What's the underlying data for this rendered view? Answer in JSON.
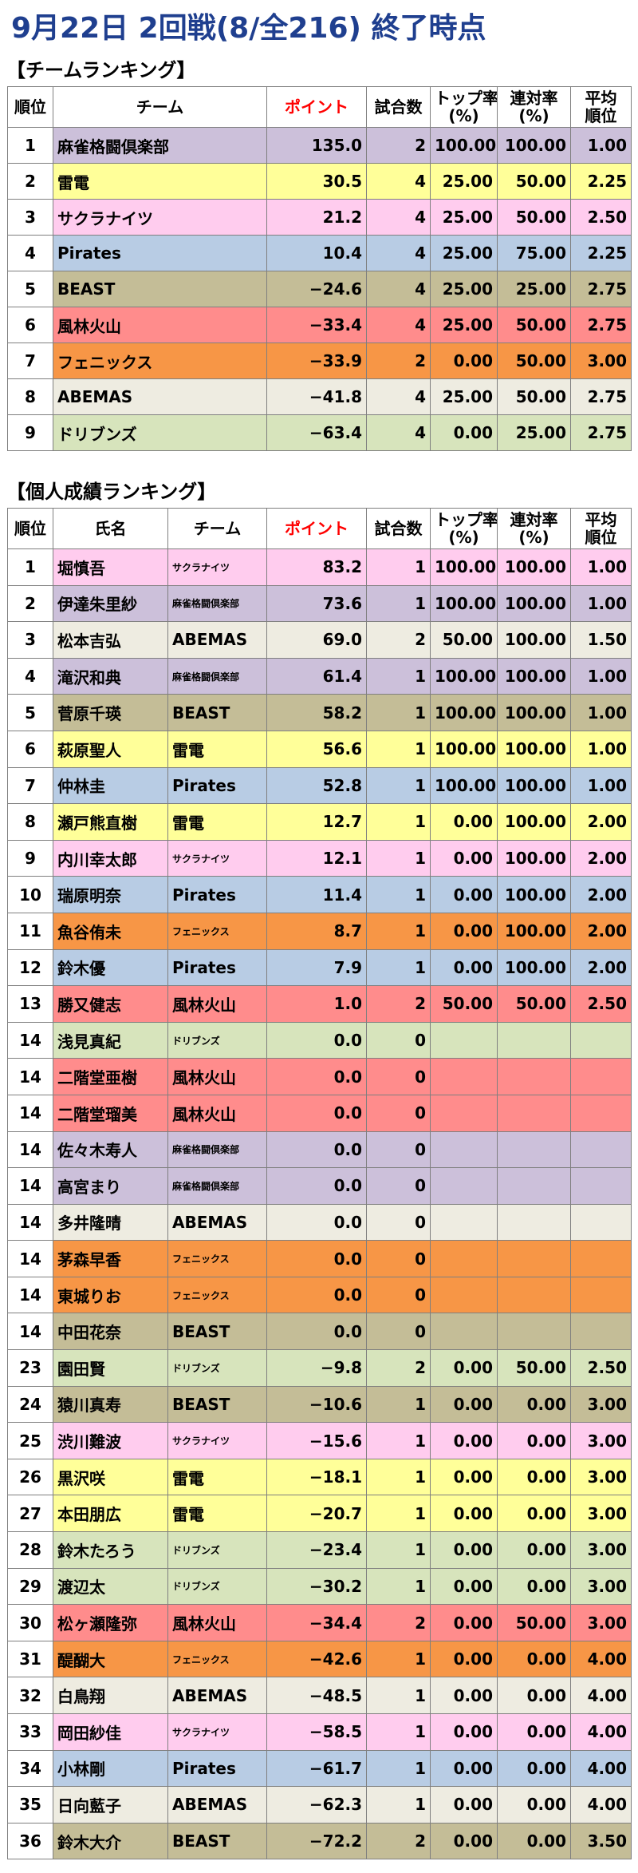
{
  "title": "9月22日 2回戦(8/全216) 終了時点",
  "team_section": "【チームランキング】",
  "indiv_section": "【個人成績ランキング】",
  "headers": {
    "rank": "順位",
    "team": "チーム",
    "name": "氏名",
    "points": "ポイント",
    "games": "試合数",
    "top_rate_1": "トップ率",
    "top_rate_2": "(%)",
    "rentai_1": "連対率",
    "rentai_2": "(%)",
    "avg_1": "平均",
    "avg_2": "順位"
  },
  "colors": {
    "麻雀格闘倶楽部": "#ccc0da",
    "雷電": "#ffff99",
    "サクラナイツ": "#ffccee",
    "Pirates": "#b8cce4",
    "BEAST": "#c4bd97",
    "風林火山": "#ff8c8c",
    "フェニックス": "#f79646",
    "ABEMAS": "#eeece1",
    "ドリブンズ": "#d7e4bc"
  },
  "teams": [
    {
      "rank": "1",
      "team": "麻雀格闘倶楽部",
      "points": "135.0",
      "games": "2",
      "top": "100.00",
      "rentai": "100.00",
      "avg": "1.00"
    },
    {
      "rank": "2",
      "team": "雷電",
      "points": "30.5",
      "games": "4",
      "top": "25.00",
      "rentai": "50.00",
      "avg": "2.25"
    },
    {
      "rank": "3",
      "team": "サクラナイツ",
      "points": "21.2",
      "games": "4",
      "top": "25.00",
      "rentai": "50.00",
      "avg": "2.50"
    },
    {
      "rank": "4",
      "team": "Pirates",
      "points": "10.4",
      "games": "4",
      "top": "25.00",
      "rentai": "75.00",
      "avg": "2.25"
    },
    {
      "rank": "5",
      "team": "BEAST",
      "points": "−24.6",
      "games": "4",
      "top": "25.00",
      "rentai": "25.00",
      "avg": "2.75"
    },
    {
      "rank": "6",
      "team": "風林火山",
      "points": "−33.4",
      "games": "4",
      "top": "25.00",
      "rentai": "50.00",
      "avg": "2.75"
    },
    {
      "rank": "7",
      "team": "フェニックス",
      "points": "−33.9",
      "games": "2",
      "top": "0.00",
      "rentai": "50.00",
      "avg": "3.00"
    },
    {
      "rank": "8",
      "team": "ABEMAS",
      "points": "−41.8",
      "games": "4",
      "top": "25.00",
      "rentai": "50.00",
      "avg": "2.75"
    },
    {
      "rank": "9",
      "team": "ドリブンズ",
      "points": "−63.4",
      "games": "4",
      "top": "0.00",
      "rentai": "25.00",
      "avg": "2.75"
    }
  ],
  "players": [
    {
      "rank": "1",
      "name": "堀慎吾",
      "team": "サクラナイツ",
      "points": "83.2",
      "games": "1",
      "top": "100.00",
      "rentai": "100.00",
      "avg": "1.00"
    },
    {
      "rank": "2",
      "name": "伊達朱里紗",
      "team": "麻雀格闘倶楽部",
      "points": "73.6",
      "games": "1",
      "top": "100.00",
      "rentai": "100.00",
      "avg": "1.00"
    },
    {
      "rank": "3",
      "name": "松本吉弘",
      "team": "ABEMAS",
      "points": "69.0",
      "games": "2",
      "top": "50.00",
      "rentai": "100.00",
      "avg": "1.50"
    },
    {
      "rank": "4",
      "name": "滝沢和典",
      "team": "麻雀格闘倶楽部",
      "points": "61.4",
      "games": "1",
      "top": "100.00",
      "rentai": "100.00",
      "avg": "1.00"
    },
    {
      "rank": "5",
      "name": "菅原千瑛",
      "team": "BEAST",
      "points": "58.2",
      "games": "1",
      "top": "100.00",
      "rentai": "100.00",
      "avg": "1.00"
    },
    {
      "rank": "6",
      "name": "萩原聖人",
      "team": "雷電",
      "points": "56.6",
      "games": "1",
      "top": "100.00",
      "rentai": "100.00",
      "avg": "1.00"
    },
    {
      "rank": "7",
      "name": "仲林圭",
      "team": "Pirates",
      "points": "52.8",
      "games": "1",
      "top": "100.00",
      "rentai": "100.00",
      "avg": "1.00"
    },
    {
      "rank": "8",
      "name": "瀬戸熊直樹",
      "team": "雷電",
      "points": "12.7",
      "games": "1",
      "top": "0.00",
      "rentai": "100.00",
      "avg": "2.00"
    },
    {
      "rank": "9",
      "name": "内川幸太郎",
      "team": "サクラナイツ",
      "points": "12.1",
      "games": "1",
      "top": "0.00",
      "rentai": "100.00",
      "avg": "2.00"
    },
    {
      "rank": "10",
      "name": "瑞原明奈",
      "team": "Pirates",
      "points": "11.4",
      "games": "1",
      "top": "0.00",
      "rentai": "100.00",
      "avg": "2.00"
    },
    {
      "rank": "11",
      "name": "魚谷侑未",
      "team": "フェニックス",
      "points": "8.7",
      "games": "1",
      "top": "0.00",
      "rentai": "100.00",
      "avg": "2.00"
    },
    {
      "rank": "12",
      "name": "鈴木優",
      "team": "Pirates",
      "points": "7.9",
      "games": "1",
      "top": "0.00",
      "rentai": "100.00",
      "avg": "2.00"
    },
    {
      "rank": "13",
      "name": "勝又健志",
      "team": "風林火山",
      "points": "1.0",
      "games": "2",
      "top": "50.00",
      "rentai": "50.00",
      "avg": "2.50"
    },
    {
      "rank": "14",
      "name": "浅見真紀",
      "team": "ドリブンズ",
      "points": "0.0",
      "games": "0",
      "top": "",
      "rentai": "",
      "avg": ""
    },
    {
      "rank": "14",
      "name": "二階堂亜樹",
      "team": "風林火山",
      "points": "0.0",
      "games": "0",
      "top": "",
      "rentai": "",
      "avg": ""
    },
    {
      "rank": "14",
      "name": "二階堂瑠美",
      "team": "風林火山",
      "points": "0.0",
      "games": "0",
      "top": "",
      "rentai": "",
      "avg": ""
    },
    {
      "rank": "14",
      "name": "佐々木寿人",
      "team": "麻雀格闘倶楽部",
      "points": "0.0",
      "games": "0",
      "top": "",
      "rentai": "",
      "avg": ""
    },
    {
      "rank": "14",
      "name": "高宮まり",
      "team": "麻雀格闘倶楽部",
      "points": "0.0",
      "games": "0",
      "top": "",
      "rentai": "",
      "avg": ""
    },
    {
      "rank": "14",
      "name": "多井隆晴",
      "team": "ABEMAS",
      "points": "0.0",
      "games": "0",
      "top": "",
      "rentai": "",
      "avg": ""
    },
    {
      "rank": "14",
      "name": "茅森早香",
      "team": "フェニックス",
      "points": "0.0",
      "games": "0",
      "top": "",
      "rentai": "",
      "avg": ""
    },
    {
      "rank": "14",
      "name": "東城りお",
      "team": "フェニックス",
      "points": "0.0",
      "games": "0",
      "top": "",
      "rentai": "",
      "avg": ""
    },
    {
      "rank": "14",
      "name": "中田花奈",
      "team": "BEAST",
      "points": "0.0",
      "games": "0",
      "top": "",
      "rentai": "",
      "avg": ""
    },
    {
      "rank": "23",
      "name": "園田賢",
      "team": "ドリブンズ",
      "points": "−9.8",
      "games": "2",
      "top": "0.00",
      "rentai": "50.00",
      "avg": "2.50"
    },
    {
      "rank": "24",
      "name": "猿川真寿",
      "team": "BEAST",
      "points": "−10.6",
      "games": "1",
      "top": "0.00",
      "rentai": "0.00",
      "avg": "3.00"
    },
    {
      "rank": "25",
      "name": "渋川難波",
      "team": "サクラナイツ",
      "points": "−15.6",
      "games": "1",
      "top": "0.00",
      "rentai": "0.00",
      "avg": "3.00"
    },
    {
      "rank": "26",
      "name": "黒沢咲",
      "team": "雷電",
      "points": "−18.1",
      "games": "1",
      "top": "0.00",
      "rentai": "0.00",
      "avg": "3.00"
    },
    {
      "rank": "27",
      "name": "本田朋広",
      "team": "雷電",
      "points": "−20.7",
      "games": "1",
      "top": "0.00",
      "rentai": "0.00",
      "avg": "3.00"
    },
    {
      "rank": "28",
      "name": "鈴木たろう",
      "team": "ドリブンズ",
      "points": "−23.4",
      "games": "1",
      "top": "0.00",
      "rentai": "0.00",
      "avg": "3.00"
    },
    {
      "rank": "29",
      "name": "渡辺太",
      "team": "ドリブンズ",
      "points": "−30.2",
      "games": "1",
      "top": "0.00",
      "rentai": "0.00",
      "avg": "3.00"
    },
    {
      "rank": "30",
      "name": "松ヶ瀬隆弥",
      "team": "風林火山",
      "points": "−34.4",
      "games": "2",
      "top": "0.00",
      "rentai": "50.00",
      "avg": "3.00"
    },
    {
      "rank": "31",
      "name": "醍醐大",
      "team": "フェニックス",
      "points": "−42.6",
      "games": "1",
      "top": "0.00",
      "rentai": "0.00",
      "avg": "4.00"
    },
    {
      "rank": "32",
      "name": "白鳥翔",
      "team": "ABEMAS",
      "points": "−48.5",
      "games": "1",
      "top": "0.00",
      "rentai": "0.00",
      "avg": "4.00"
    },
    {
      "rank": "33",
      "name": "岡田紗佳",
      "team": "サクラナイツ",
      "points": "−58.5",
      "games": "1",
      "top": "0.00",
      "rentai": "0.00",
      "avg": "4.00"
    },
    {
      "rank": "34",
      "name": "小林剛",
      "team": "Pirates",
      "points": "−61.7",
      "games": "1",
      "top": "0.00",
      "rentai": "0.00",
      "avg": "4.00"
    },
    {
      "rank": "35",
      "name": "日向藍子",
      "team": "ABEMAS",
      "points": "−62.3",
      "games": "1",
      "top": "0.00",
      "rentai": "0.00",
      "avg": "4.00"
    },
    {
      "rank": "36",
      "name": "鈴木大介",
      "team": "BEAST",
      "points": "−72.2",
      "games": "2",
      "top": "0.00",
      "rentai": "0.00",
      "avg": "3.50"
    }
  ]
}
